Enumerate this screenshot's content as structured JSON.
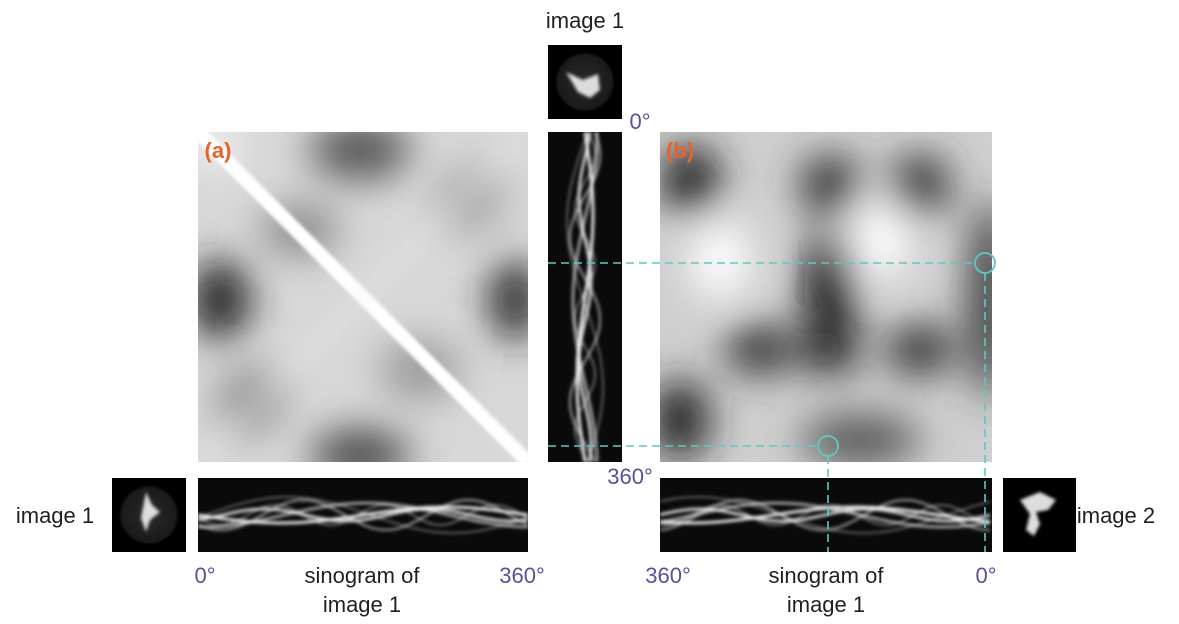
{
  "panel_a": {
    "label": "(a)"
  },
  "panel_b": {
    "label": "(b)"
  },
  "top": {
    "image_label": "image 1",
    "angle_start": "0°",
    "angle_end": "360°"
  },
  "bottom_left": {
    "image_label": "image 1",
    "angle_start": "0°",
    "angle_end": "360°",
    "caption_line1": "sinogram of",
    "caption_line2": "image 1"
  },
  "bottom_right": {
    "image_label": "image 2",
    "angle_start": "360°",
    "angle_end": "0°",
    "caption_line1": "sinogram of",
    "caption_line2": "image 1"
  }
}
